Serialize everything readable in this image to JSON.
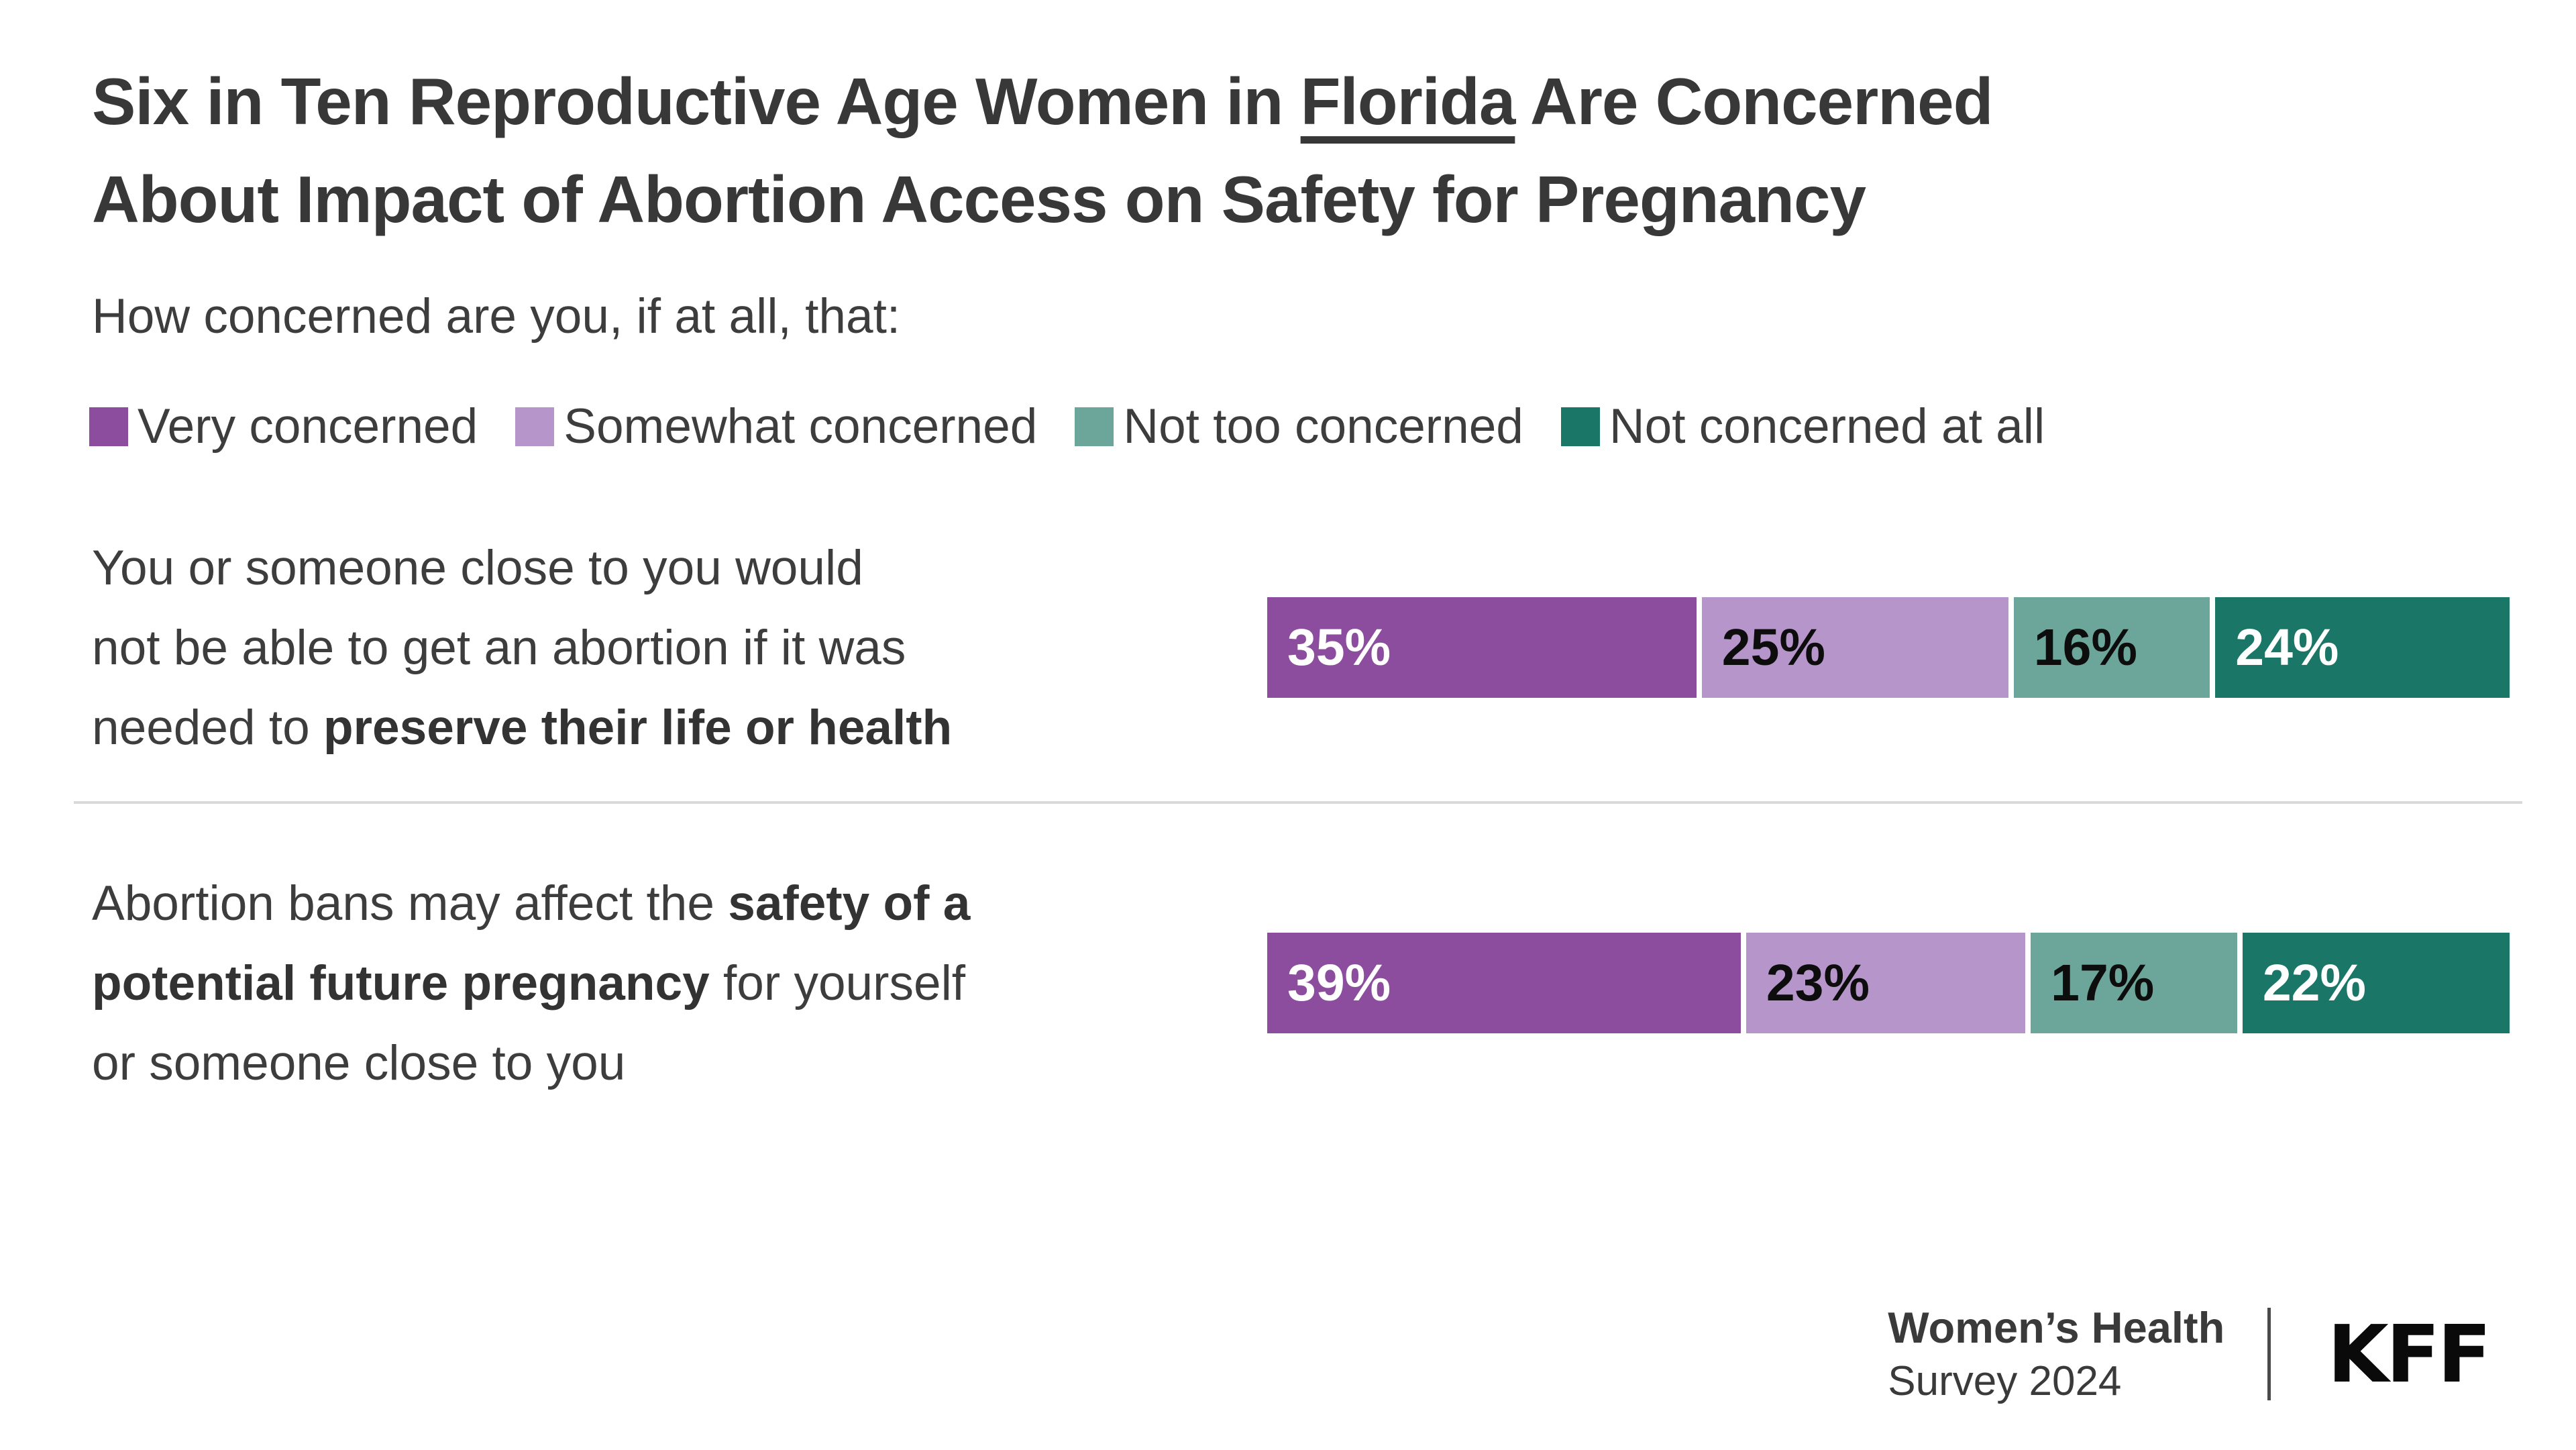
{
  "title": {
    "line1_pre": "Six in Ten Reproductive Age Women in ",
    "line1_underlined": "Florida",
    "line1_post": " Are Concerned",
    "line2": "About Impact of Abortion Access on Safety for Pregnancy"
  },
  "subtitle": "How concerned are you, if at all, that:",
  "legend": [
    {
      "label": "Very concerned",
      "color": "#8c4d9e"
    },
    {
      "label": "Somewhat concerned",
      "color": "#b695ca"
    },
    {
      "label": "Not too concerned",
      "color": "#6ca69b"
    },
    {
      "label": "Not concerned at all",
      "color": "#1a7767"
    }
  ],
  "rows": [
    {
      "label_lines": [
        [
          {
            "text": "You or someone close to you would",
            "bold": false
          }
        ],
        [
          {
            "text": "not be able to get an abortion if it was",
            "bold": false
          }
        ],
        [
          {
            "text": "needed to ",
            "bold": false
          },
          {
            "text": "preserve their life or health",
            "bold": true
          }
        ]
      ],
      "values": [
        35,
        25,
        16,
        24
      ],
      "labels": [
        "35%",
        "25%",
        "16%",
        "24%"
      ]
    },
    {
      "label_lines": [
        [
          {
            "text": "Abortion bans may affect the ",
            "bold": false
          },
          {
            "text": "safety of a",
            "bold": true
          }
        ],
        [
          {
            "text": "potential future pregnancy",
            "bold": true
          },
          {
            "text": " for yourself",
            "bold": false
          }
        ],
        [
          {
            "text": "or someone close to you",
            "bold": false
          }
        ]
      ],
      "values": [
        39,
        23,
        17,
        22
      ],
      "labels": [
        "39%",
        "23%",
        "17%",
        "22%"
      ]
    }
  ],
  "chart_data": {
    "type": "bar",
    "orientation": "horizontal",
    "stacked": true,
    "unit": "%",
    "title": "Six in Ten Reproductive Age Women in Florida Are Concerned About Impact of Abortion Access on Safety for Pregnancy",
    "subtitle": "How concerned are you, if at all, that:",
    "categories": [
      "You or someone close to you would not be able to get an abortion if it was needed to preserve their life or health",
      "Abortion bans may affect the safety of a potential future pregnancy for yourself or someone close to you"
    ],
    "series": [
      {
        "name": "Very concerned",
        "color": "#8c4d9e",
        "values": [
          35,
          39
        ]
      },
      {
        "name": "Somewhat concerned",
        "color": "#b695ca",
        "values": [
          25,
          23
        ]
      },
      {
        "name": "Not too concerned",
        "color": "#6ca69b",
        "values": [
          16,
          17
        ]
      },
      {
        "name": "Not concerned at all",
        "color": "#1a7767",
        "values": [
          24,
          22
        ]
      }
    ],
    "value_text_colors": [
      "#ffffff",
      "#0d0d0d",
      "#0d0d0d",
      "#ffffff"
    ],
    "xlim": [
      0,
      100
    ],
    "grid": false,
    "legend_position": "top"
  },
  "footer": {
    "source_line1": "Women’s Health",
    "source_line2": "Survey 2024",
    "logo": "KFF"
  }
}
